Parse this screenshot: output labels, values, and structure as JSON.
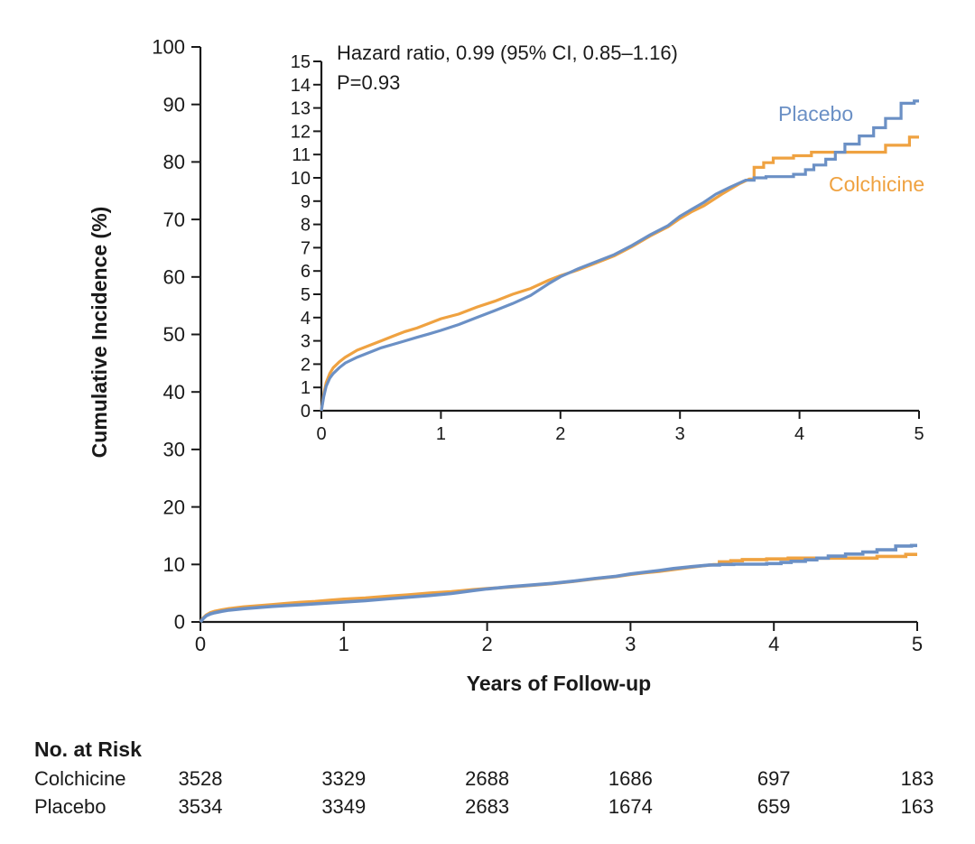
{
  "colors": {
    "placebo": "#6b90c5",
    "colchicine": "#efa241",
    "axis": "#1a1a1a",
    "text": "#1a1a1a",
    "background": "#ffffff"
  },
  "annotation": {
    "hazard_ratio": "Hazard ratio, 0.99 (95% CI, 0.85–1.16)",
    "p_value": "P=0.93"
  },
  "legend": {
    "placebo": "Placebo",
    "colchicine": "Colchicine"
  },
  "chart_data": {
    "type": "line",
    "title": "",
    "xlabel": "Years of Follow-up",
    "ylabel": "Cumulative Incidence (%)",
    "legend_position": "inline-right",
    "grid": false,
    "main_axis": {
      "xlim": [
        0,
        5
      ],
      "ylim": [
        0,
        100
      ],
      "xticks": [
        0,
        1,
        2,
        3,
        4,
        5
      ],
      "yticks": [
        0,
        10,
        20,
        30,
        40,
        50,
        60,
        70,
        80,
        90,
        100
      ]
    },
    "inset_axis": {
      "xlim": [
        0,
        5
      ],
      "ylim": [
        0,
        15
      ],
      "xticks": [
        0,
        1,
        2,
        3,
        4,
        5
      ],
      "yticks": [
        0,
        1,
        2,
        3,
        4,
        5,
        6,
        7,
        8,
        9,
        10,
        11,
        12,
        13,
        14,
        15
      ]
    },
    "series": [
      {
        "name": "Colchicine",
        "color_key": "colchicine",
        "points": [
          [
            0,
            0
          ],
          [
            0.02,
            0.7
          ],
          [
            0.04,
            1.2
          ],
          [
            0.07,
            1.6
          ],
          [
            0.1,
            1.85
          ],
          [
            0.15,
            2.1
          ],
          [
            0.2,
            2.3
          ],
          [
            0.3,
            2.6
          ],
          [
            0.4,
            2.8
          ],
          [
            0.5,
            3.0
          ],
          [
            0.6,
            3.2
          ],
          [
            0.7,
            3.4
          ],
          [
            0.8,
            3.55
          ],
          [
            0.9,
            3.75
          ],
          [
            1.0,
            3.95
          ],
          [
            1.15,
            4.15
          ],
          [
            1.3,
            4.45
          ],
          [
            1.45,
            4.7
          ],
          [
            1.6,
            5.0
          ],
          [
            1.75,
            5.25
          ],
          [
            1.9,
            5.6
          ],
          [
            2.0,
            5.8
          ],
          [
            2.15,
            6.05
          ],
          [
            2.3,
            6.35
          ],
          [
            2.45,
            6.65
          ],
          [
            2.6,
            7.05
          ],
          [
            2.75,
            7.5
          ],
          [
            2.9,
            7.9
          ],
          [
            3.0,
            8.25
          ],
          [
            3.1,
            8.55
          ],
          [
            3.2,
            8.8
          ],
          [
            3.35,
            9.3
          ],
          [
            3.5,
            9.75
          ],
          [
            3.58,
            9.95
          ],
          [
            3.62,
            9.95
          ],
          [
            3.62,
            10.45
          ],
          [
            3.7,
            10.45
          ],
          [
            3.7,
            10.65
          ],
          [
            3.78,
            10.65
          ],
          [
            3.78,
            10.85
          ],
          [
            3.95,
            10.85
          ],
          [
            3.95,
            10.95
          ],
          [
            4.1,
            10.95
          ],
          [
            4.1,
            11.1
          ],
          [
            4.72,
            11.1
          ],
          [
            4.72,
            11.4
          ],
          [
            4.92,
            11.4
          ],
          [
            4.92,
            11.75
          ],
          [
            5.0,
            11.75
          ]
        ]
      },
      {
        "name": "Placebo",
        "color_key": "placebo",
        "points": [
          [
            0,
            0
          ],
          [
            0.02,
            0.6
          ],
          [
            0.04,
            1.05
          ],
          [
            0.07,
            1.4
          ],
          [
            0.1,
            1.6
          ],
          [
            0.15,
            1.85
          ],
          [
            0.2,
            2.05
          ],
          [
            0.3,
            2.3
          ],
          [
            0.4,
            2.5
          ],
          [
            0.5,
            2.7
          ],
          [
            0.6,
            2.85
          ],
          [
            0.7,
            3.0
          ],
          [
            0.8,
            3.15
          ],
          [
            0.9,
            3.3
          ],
          [
            1.0,
            3.45
          ],
          [
            1.15,
            3.7
          ],
          [
            1.3,
            4.0
          ],
          [
            1.45,
            4.3
          ],
          [
            1.6,
            4.6
          ],
          [
            1.75,
            4.95
          ],
          [
            1.9,
            5.45
          ],
          [
            2.0,
            5.75
          ],
          [
            2.15,
            6.1
          ],
          [
            2.3,
            6.4
          ],
          [
            2.45,
            6.7
          ],
          [
            2.6,
            7.1
          ],
          [
            2.75,
            7.55
          ],
          [
            2.9,
            7.95
          ],
          [
            3.0,
            8.35
          ],
          [
            3.1,
            8.65
          ],
          [
            3.2,
            8.95
          ],
          [
            3.3,
            9.3
          ],
          [
            3.42,
            9.6
          ],
          [
            3.55,
            9.9
          ],
          [
            3.62,
            9.9
          ],
          [
            3.62,
            10.0
          ],
          [
            3.72,
            10.0
          ],
          [
            3.72,
            10.05
          ],
          [
            3.95,
            10.05
          ],
          [
            3.95,
            10.15
          ],
          [
            4.05,
            10.15
          ],
          [
            4.05,
            10.35
          ],
          [
            4.12,
            10.35
          ],
          [
            4.12,
            10.55
          ],
          [
            4.22,
            10.55
          ],
          [
            4.22,
            10.8
          ],
          [
            4.3,
            10.8
          ],
          [
            4.3,
            11.1
          ],
          [
            4.38,
            11.1
          ],
          [
            4.38,
            11.45
          ],
          [
            4.5,
            11.45
          ],
          [
            4.5,
            11.8
          ],
          [
            4.62,
            11.8
          ],
          [
            4.62,
            12.15
          ],
          [
            4.72,
            12.15
          ],
          [
            4.72,
            12.55
          ],
          [
            4.85,
            12.55
          ],
          [
            4.85,
            13.2
          ],
          [
            4.96,
            13.2
          ],
          [
            4.96,
            13.3
          ],
          [
            5.0,
            13.3
          ]
        ]
      }
    ]
  },
  "risk_table": {
    "title": "No. at Risk",
    "timepoints": [
      0,
      1,
      2,
      3,
      4,
      5
    ],
    "rows": [
      {
        "label": "Colchicine",
        "values": [
          "3528",
          "3329",
          "2688",
          "1686",
          "697",
          "183"
        ]
      },
      {
        "label": "Placebo",
        "values": [
          "3534",
          "3349",
          "2683",
          "1674",
          "659",
          "163"
        ]
      }
    ]
  }
}
